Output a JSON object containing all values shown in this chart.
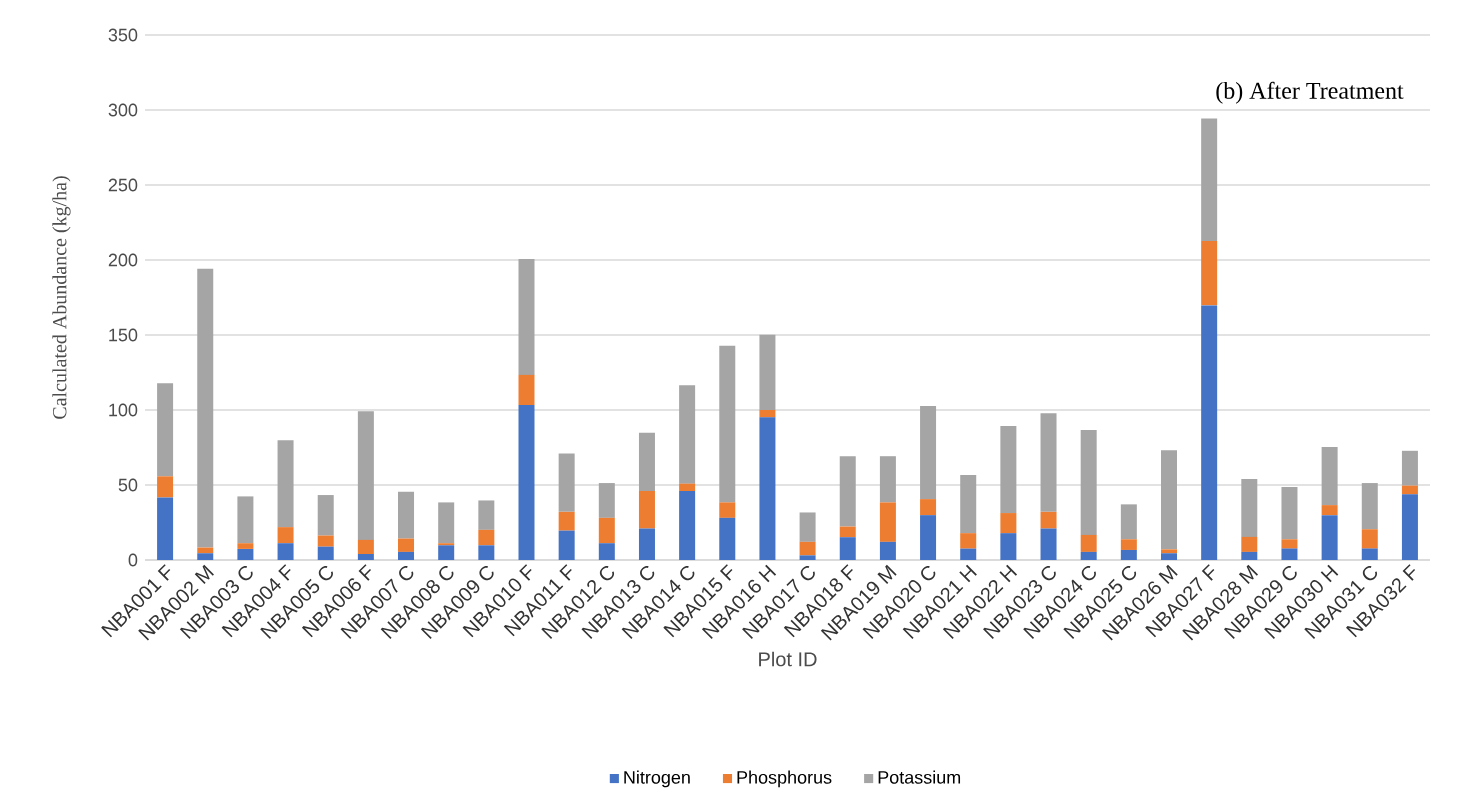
{
  "chart_data": {
    "type": "bar",
    "title": "(b) After Treatment",
    "xlabel": "Plot ID",
    "ylabel": "Calculated Abundance (kg/ha)",
    "categories": [
      "NBA001 F",
      "NBA002 M",
      "NBA003 C",
      "NBA004 F",
      "NBA005 C",
      "NBA006 F",
      "NBA007 C",
      "NBA008 C",
      "NBA009 C",
      "NBA010 F",
      "NBA011 F",
      "NBA012 C",
      "NBA013 C",
      "NBA014 C",
      "NBA015 F",
      "NBA016 H",
      "NBA017 C",
      "NBA018 F",
      "NBA019 M",
      "NBA020 C",
      "NBA021 H",
      "NBA022 H",
      "NBA023 C",
      "NBA024 C",
      "NBA025 C",
      "NBA026 M",
      "NBA027 F",
      "NBA028 M",
      "NBA029 C",
      "NBA030 H",
      "NBA031 C",
      "NBA032 F"
    ],
    "series": [
      {
        "name": "Nitrogen",
        "color": "#4472c4",
        "values": [
          41.7,
          4.5,
          7.4,
          11.2,
          8.9,
          4.0,
          5.4,
          9.8,
          9.8,
          103.3,
          19.6,
          11.2,
          21.0,
          46.0,
          28.1,
          95.1,
          3.1,
          15.2,
          12.1,
          29.9,
          7.6,
          17.9,
          21.0,
          5.4,
          6.7,
          4.5,
          169.9,
          5.4,
          7.6,
          29.9,
          7.6,
          43.8
        ]
      },
      {
        "name": "Phosphorus",
        "color": "#ed7d31",
        "values": [
          14.1,
          3.8,
          3.8,
          10.7,
          7.4,
          9.4,
          8.9,
          1.4,
          10.3,
          20.1,
          12.5,
          16.9,
          25.0,
          4.9,
          10.3,
          4.9,
          9.0,
          7.1,
          26.3,
          10.7,
          10.3,
          13.4,
          11.1,
          11.3,
          7.1,
          2.6,
          42.8,
          10.0,
          6.2,
          6.7,
          12.9,
          5.8
        ]
      },
      {
        "name": "Potassium",
        "color": "#a5a5a5",
        "values": [
          62.1,
          185.9,
          31.2,
          58.0,
          27.0,
          85.7,
          31.2,
          27.2,
          19.6,
          77.3,
          38.9,
          23.2,
          38.8,
          65.6,
          104.5,
          50.2,
          19.6,
          46.9,
          30.8,
          62.1,
          38.8,
          58.0,
          65.7,
          69.9,
          23.3,
          66.1,
          81.7,
          38.6,
          34.9,
          38.8,
          30.8,
          23.2
        ]
      }
    ],
    "stacked": true,
    "ylim": [
      0,
      350
    ],
    "yticks": [
      0,
      50,
      100,
      150,
      200,
      250,
      300,
      350
    ],
    "grid": "y",
    "legend": "bottom"
  }
}
